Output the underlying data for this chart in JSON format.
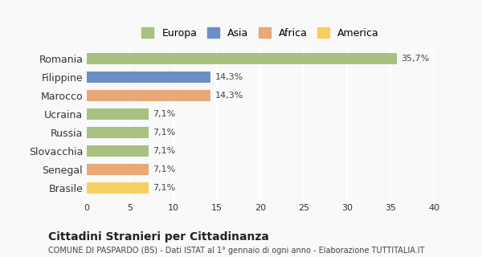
{
  "categories": [
    "Romania",
    "Filippine",
    "Marocco",
    "Ucraina",
    "Russia",
    "Slovacchia",
    "Senegal",
    "Brasile"
  ],
  "values": [
    35.7,
    14.3,
    14.3,
    7.1,
    7.1,
    7.1,
    7.1,
    7.1
  ],
  "labels": [
    "35,7%",
    "14,3%",
    "14,3%",
    "7,1%",
    "7,1%",
    "7,1%",
    "7,1%",
    "7,1%"
  ],
  "colors": [
    "#a8c080",
    "#6b8ec7",
    "#e8a878",
    "#a8c080",
    "#a8c080",
    "#a8c080",
    "#e8a878",
    "#f5d060"
  ],
  "legend_labels": [
    "Europa",
    "Asia",
    "Africa",
    "America"
  ],
  "legend_colors": [
    "#a8c080",
    "#6b8ec7",
    "#e8a878",
    "#f5d060"
  ],
  "title": "Cittadini Stranieri per Cittadinanza",
  "subtitle": "COMUNE DI PASPARDO (BS) - Dati ISTAT al 1° gennaio di ogni anno - Elaborazione TUTTITALIA.IT",
  "xlim": [
    0,
    40
  ],
  "xticks": [
    0,
    5,
    10,
    15,
    20,
    25,
    30,
    35,
    40
  ],
  "background_color": "#f9f9f9",
  "grid_color": "#ffffff",
  "bar_height": 0.6
}
